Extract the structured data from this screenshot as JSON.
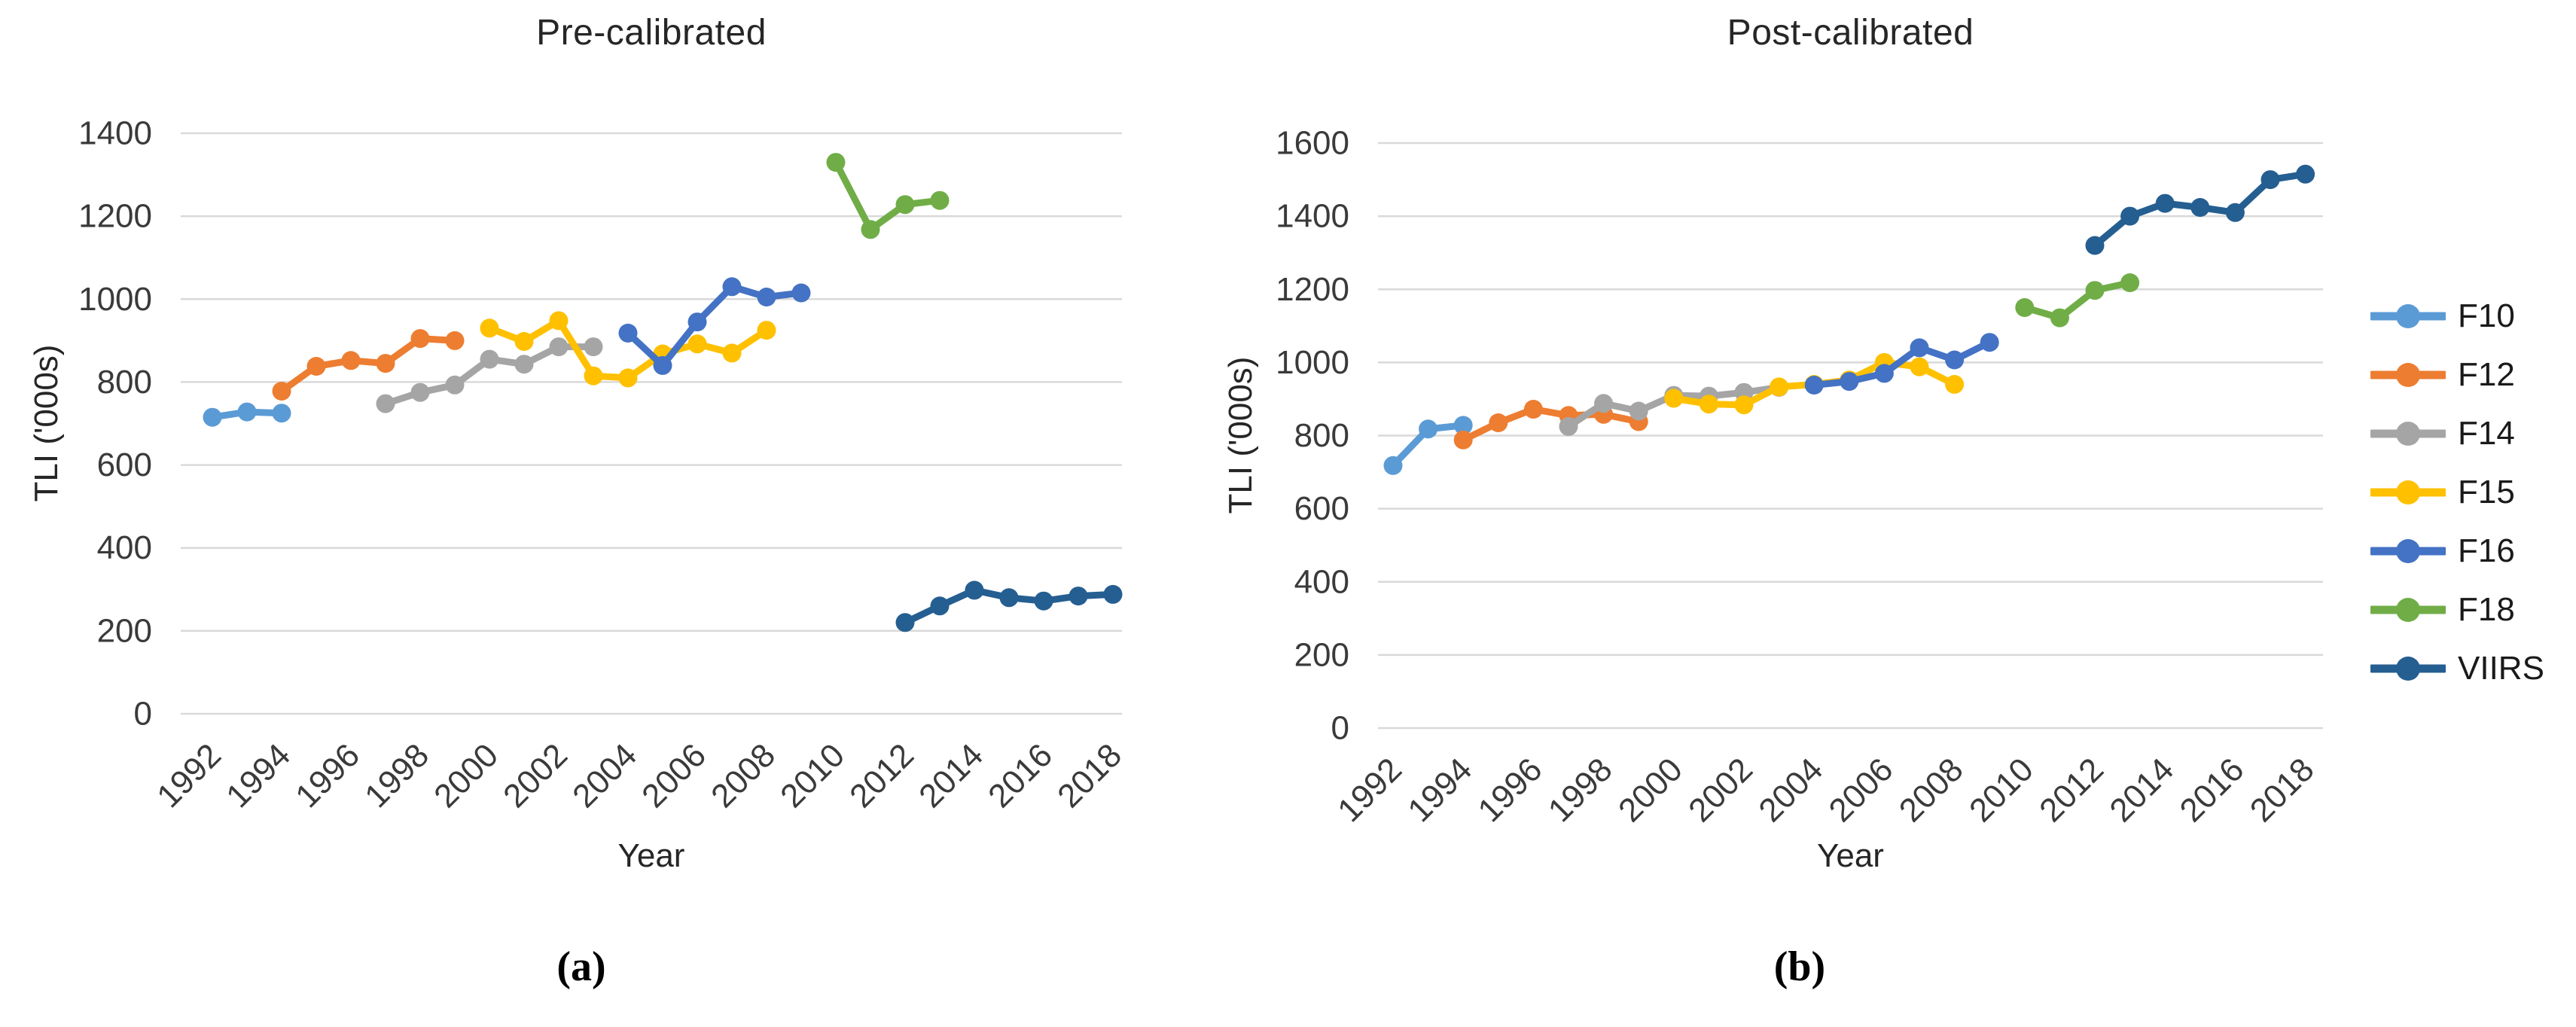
{
  "figure": {
    "panels": [
      {
        "caption": "(a)"
      },
      {
        "caption": "(b)"
      }
    ]
  },
  "chart_data": [
    {
      "type": "line",
      "title": "Pre-calibrated",
      "xlabel": "Year",
      "ylabel": "TLI ('000s)",
      "ylim": [
        0,
        1400
      ],
      "ytick_step": 200,
      "xticks": [
        1992,
        1994,
        1996,
        1998,
        2000,
        2002,
        2004,
        2006,
        2008,
        2010,
        2012,
        2014,
        2016,
        2018
      ],
      "grid": true,
      "legend_position": "shared-right",
      "series": [
        {
          "name": "F10",
          "color": "#5B9BD5",
          "x": [
            1992,
            1993,
            1994
          ],
          "y": [
            715,
            728,
            725
          ]
        },
        {
          "name": "F12",
          "color": "#ED7D31",
          "x": [
            1994,
            1995,
            1996,
            1997,
            1998,
            1999
          ],
          "y": [
            778,
            838,
            852,
            845,
            905,
            900
          ]
        },
        {
          "name": "F14",
          "color": "#A5A5A5",
          "x": [
            1997,
            1998,
            1999,
            2000,
            2001,
            2002,
            2003
          ],
          "y": [
            748,
            775,
            793,
            855,
            843,
            885,
            885
          ]
        },
        {
          "name": "F15",
          "color": "#FFC000",
          "x": [
            2000,
            2001,
            2002,
            2003,
            2004,
            2005,
            2006,
            2007,
            2008
          ],
          "y": [
            930,
            898,
            948,
            815,
            810,
            868,
            892,
            870,
            925
          ]
        },
        {
          "name": "F16",
          "color": "#4472C4",
          "x": [
            2004,
            2005,
            2006,
            2007,
            2008,
            2009
          ],
          "y": [
            918,
            840,
            945,
            1030,
            1005,
            1015
          ]
        },
        {
          "name": "F18",
          "color": "#70AD47",
          "x": [
            2010,
            2011,
            2012,
            2013
          ],
          "y": [
            1330,
            1168,
            1228,
            1238
          ]
        },
        {
          "name": "VIIRS",
          "color": "#255E91",
          "x": [
            2012,
            2013,
            2014,
            2015,
            2016,
            2017,
            2018
          ],
          "y": [
            220,
            260,
            298,
            280,
            272,
            284,
            288
          ]
        }
      ]
    },
    {
      "type": "line",
      "title": "Post-calibrated",
      "xlabel": "Year",
      "ylabel": "TLI ('000s)",
      "ylim": [
        0,
        1600
      ],
      "ytick_step": 200,
      "xticks": [
        1992,
        1994,
        1996,
        1998,
        2000,
        2002,
        2004,
        2006,
        2008,
        2010,
        2012,
        2014,
        2016,
        2018
      ],
      "grid": true,
      "legend_position": "shared-right",
      "series": [
        {
          "name": "F10",
          "color": "#5B9BD5",
          "x": [
            1992,
            1993,
            1994
          ],
          "y": [
            718,
            818,
            828
          ]
        },
        {
          "name": "F12",
          "color": "#ED7D31",
          "x": [
            1994,
            1995,
            1996,
            1997,
            1998,
            1999
          ],
          "y": [
            788,
            835,
            872,
            855,
            858,
            838
          ]
        },
        {
          "name": "F14",
          "color": "#A5A5A5",
          "x": [
            1997,
            1998,
            1999,
            2000,
            2001,
            2002,
            2003
          ],
          "y": [
            825,
            888,
            867,
            910,
            908,
            918,
            932
          ]
        },
        {
          "name": "F15",
          "color": "#FFC000",
          "x": [
            2000,
            2001,
            2002,
            2003,
            2004,
            2005,
            2006,
            2007,
            2008
          ],
          "y": [
            902,
            886,
            884,
            933,
            940,
            952,
            1000,
            988,
            940
          ]
        },
        {
          "name": "F16",
          "color": "#4472C4",
          "x": [
            2004,
            2005,
            2006,
            2007,
            2008,
            2009
          ],
          "y": [
            938,
            948,
            970,
            1040,
            1007,
            1055
          ]
        },
        {
          "name": "F18",
          "color": "#70AD47",
          "x": [
            2010,
            2011,
            2012,
            2013
          ],
          "y": [
            1150,
            1122,
            1197,
            1218
          ]
        },
        {
          "name": "VIIRS",
          "color": "#255E91",
          "x": [
            2012,
            2013,
            2014,
            2015,
            2016,
            2017,
            2018
          ],
          "y": [
            1320,
            1400,
            1435,
            1424,
            1410,
            1500,
            1515
          ]
        }
      ]
    }
  ],
  "legend": {
    "items": [
      {
        "label": "F10",
        "color": "#5B9BD5"
      },
      {
        "label": "F12",
        "color": "#ED7D31"
      },
      {
        "label": "F14",
        "color": "#A5A5A5"
      },
      {
        "label": "F15",
        "color": "#FFC000"
      },
      {
        "label": "F16",
        "color": "#4472C4"
      },
      {
        "label": "F18",
        "color": "#70AD47"
      },
      {
        "label": "VIIRS",
        "color": "#255E91"
      }
    ]
  }
}
